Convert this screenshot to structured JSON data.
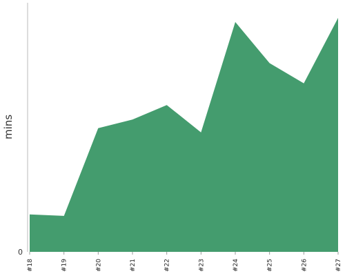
{
  "chart_data": {
    "type": "area",
    "title": "",
    "xlabel": "",
    "ylabel": "mins",
    "categories": [
      "#18",
      "#19",
      "#20",
      "#21",
      "#22",
      "#23",
      "#24",
      "#25",
      "#26",
      "#27"
    ],
    "series": [
      {
        "values": [
          15.2,
          14.6,
          50.2,
          53.7,
          59.6,
          48.5,
          93.3,
          76.6,
          68.4,
          95.0
        ]
      }
    ],
    "y_ticks": [
      0
    ],
    "y_tick_labels": [
      "0"
    ],
    "ylim": [
      0,
      100
    ],
    "grid": false,
    "legend": "none",
    "colors": {
      "area_fill": "#449c6e",
      "axis": "#bbbbbb"
    }
  }
}
